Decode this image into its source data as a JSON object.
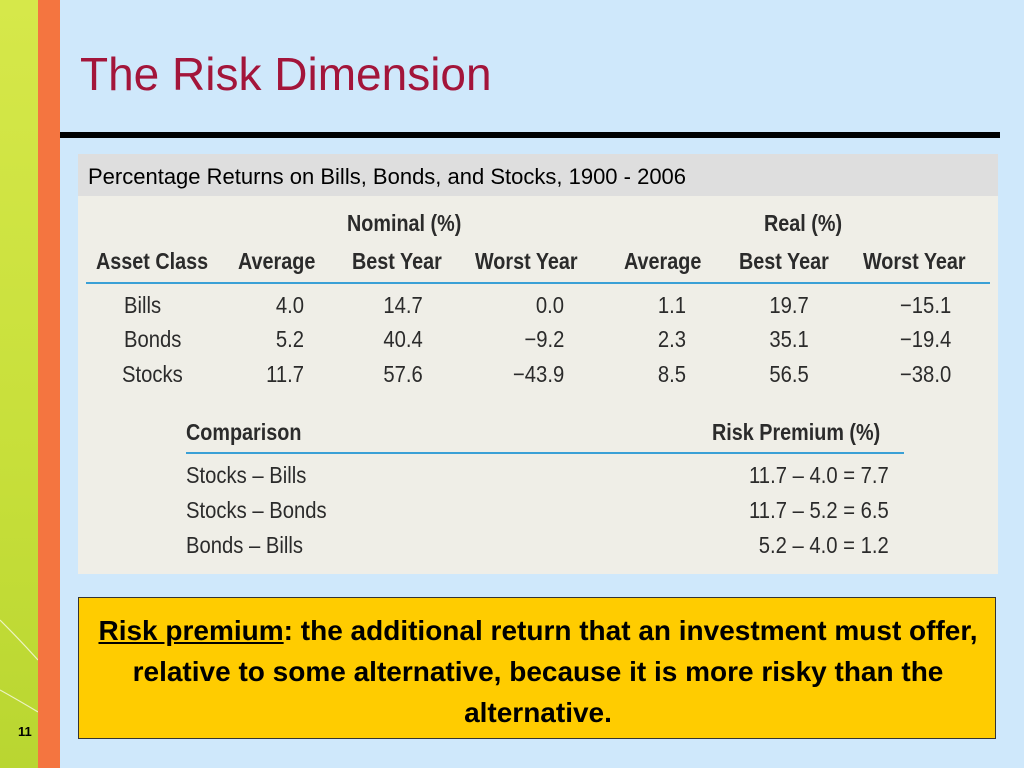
{
  "slide": {
    "title": "The Risk Dimension",
    "page_number": "11"
  },
  "table": {
    "caption": "Percentage Returns on Bills, Bonds, and Stocks, 1900 - 2006",
    "group_headers": {
      "nominal": "Nominal (%)",
      "real": "Real (%)"
    },
    "columns": [
      "Asset Class",
      "Average",
      "Best Year",
      "Worst Year",
      "Average",
      "Best Year",
      "Worst Year"
    ],
    "rows": [
      [
        "Bills",
        "4.0",
        "14.7",
        "0.0",
        "1.1",
        "19.7",
        "−15.1"
      ],
      [
        "Bonds",
        "5.2",
        "40.4",
        "−9.2",
        "2.3",
        "35.1",
        "−19.4"
      ],
      [
        "Stocks",
        "11.7",
        "57.6",
        "−43.9",
        "8.5",
        "56.5",
        "−38.0"
      ]
    ],
    "comparison": {
      "headers": [
        "Comparison",
        "Risk Premium (%)"
      ],
      "rows": [
        [
          "Stocks – Bills",
          "11.7 – 4.0 = 7.7"
        ],
        [
          "Stocks – Bonds",
          "11.7 – 5.2 = 6.5"
        ],
        [
          "Bonds – Bills",
          "5.2 – 4.0 = 1.2"
        ]
      ]
    }
  },
  "callout": {
    "term": "Risk premium",
    "separator": ":",
    "definition": " the additional return that an investment must offer, relative to some alternative, because it is more risky than the alternative."
  },
  "colors": {
    "background": "#cfe8fb",
    "title": "#a3153a",
    "accent_orange": "#f47540",
    "accent_green": "#c7df3a",
    "callout": "#ffcc00",
    "rule_blue": "#3aa0d6"
  }
}
